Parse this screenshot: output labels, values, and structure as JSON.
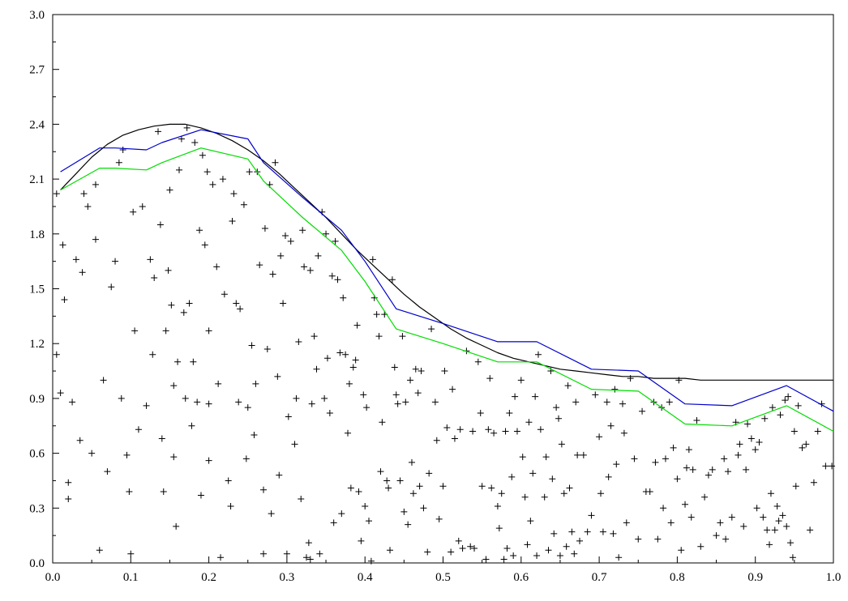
{
  "chart_data": {
    "type": "line",
    "title": "",
    "xlabel": "",
    "ylabel": "",
    "xlim": [
      0.0,
      1.0
    ],
    "ylim": [
      0.0,
      3.0
    ],
    "grid": false,
    "x_ticks": [
      "0.0",
      "0.1",
      "0.2",
      "0.3",
      "0.4",
      "0.5",
      "0.6",
      "0.7",
      "0.8",
      "0.9",
      "1.0"
    ],
    "y_ticks": [
      "0.0",
      "0.3",
      "0.6",
      "0.9",
      "1.2",
      "1.5",
      "1.8",
      "2.1",
      "2.4",
      "2.7",
      "3.0"
    ],
    "colors": {
      "smooth": "#000000",
      "blue": "#0000cc",
      "green": "#00dd00",
      "points": "#000000"
    },
    "series": [
      {
        "style": "smooth-curve",
        "x": [
          0.01,
          0.03,
          0.05,
          0.07,
          0.09,
          0.11,
          0.13,
          0.15,
          0.17,
          0.19,
          0.21,
          0.23,
          0.25,
          0.27,
          0.29,
          0.31,
          0.33,
          0.35,
          0.37,
          0.39,
          0.41,
          0.43,
          0.45,
          0.47,
          0.49,
          0.51,
          0.53,
          0.55,
          0.57,
          0.59,
          0.61,
          0.63,
          0.65,
          0.67,
          0.69,
          0.71,
          0.73,
          0.75,
          0.77,
          0.79,
          0.81,
          0.83,
          0.85,
          0.87,
          0.89,
          0.91,
          0.93,
          0.95,
          0.97,
          1.0
        ],
        "y": [
          2.04,
          2.13,
          2.22,
          2.29,
          2.34,
          2.37,
          2.39,
          2.4,
          2.4,
          2.38,
          2.35,
          2.31,
          2.26,
          2.2,
          2.13,
          2.05,
          1.97,
          1.89,
          1.8,
          1.71,
          1.63,
          1.55,
          1.47,
          1.4,
          1.34,
          1.28,
          1.23,
          1.19,
          1.15,
          1.12,
          1.1,
          1.08,
          1.06,
          1.05,
          1.04,
          1.03,
          1.02,
          1.02,
          1.01,
          1.01,
          1.01,
          1.0,
          1.0,
          1.0,
          1.0,
          1.0,
          1.0,
          1.0,
          1.0,
          1.0
        ]
      },
      {
        "style": "blue-line",
        "x": [
          0.01,
          0.06,
          0.08,
          0.12,
          0.14,
          0.19,
          0.25,
          0.27,
          0.32,
          0.37,
          0.4,
          0.44,
          0.5,
          0.57,
          0.62,
          0.69,
          0.75,
          0.81,
          0.87,
          0.94,
          1.0
        ],
        "y": [
          2.14,
          2.27,
          2.27,
          2.26,
          2.3,
          2.37,
          2.32,
          2.19,
          2.0,
          1.82,
          1.65,
          1.39,
          1.31,
          1.21,
          1.21,
          1.06,
          1.05,
          0.87,
          0.86,
          0.97,
          0.83
        ]
      },
      {
        "style": "green-line",
        "x": [
          0.01,
          0.06,
          0.08,
          0.12,
          0.14,
          0.19,
          0.25,
          0.27,
          0.32,
          0.37,
          0.4,
          0.44,
          0.5,
          0.57,
          0.62,
          0.69,
          0.75,
          0.81,
          0.87,
          0.94,
          1.0
        ],
        "y": [
          2.04,
          2.16,
          2.16,
          2.15,
          2.19,
          2.27,
          2.21,
          2.09,
          1.89,
          1.71,
          1.54,
          1.28,
          1.2,
          1.1,
          1.1,
          0.95,
          0.94,
          0.76,
          0.75,
          0.86,
          0.72
        ]
      }
    ],
    "scatter_points": [
      [
        0.005,
        2.02
      ],
      [
        0.005,
        1.14
      ],
      [
        0.01,
        0.93
      ],
      [
        0.013,
        1.74
      ],
      [
        0.015,
        1.44
      ],
      [
        0.02,
        0.44
      ],
      [
        0.02,
        0.35
      ],
      [
        0.025,
        0.88
      ],
      [
        0.03,
        1.66
      ],
      [
        0.035,
        0.67
      ],
      [
        0.038,
        1.59
      ],
      [
        0.04,
        2.02
      ],
      [
        0.045,
        1.95
      ],
      [
        0.05,
        0.6
      ],
      [
        0.055,
        1.77
      ],
      [
        0.055,
        2.07
      ],
      [
        0.06,
        0.07
      ],
      [
        0.065,
        1.0
      ],
      [
        0.07,
        0.5
      ],
      [
        0.075,
        1.51
      ],
      [
        0.08,
        1.65
      ],
      [
        0.085,
        2.19
      ],
      [
        0.088,
        0.9
      ],
      [
        0.09,
        2.26
      ],
      [
        0.095,
        0.59
      ],
      [
        0.098,
        0.39
      ],
      [
        0.1,
        0.05
      ],
      [
        0.103,
        1.92
      ],
      [
        0.105,
        1.27
      ],
      [
        0.11,
        0.73
      ],
      [
        0.115,
        1.95
      ],
      [
        0.12,
        0.86
      ],
      [
        0.125,
        1.66
      ],
      [
        0.128,
        1.14
      ],
      [
        0.13,
        1.56
      ],
      [
        0.135,
        2.36
      ],
      [
        0.138,
        1.85
      ],
      [
        0.14,
        0.68
      ],
      [
        0.142,
        0.39
      ],
      [
        0.145,
        1.27
      ],
      [
        0.148,
        1.6
      ],
      [
        0.15,
        2.04
      ],
      [
        0.152,
        1.41
      ],
      [
        0.155,
        0.97
      ],
      [
        0.155,
        0.58
      ],
      [
        0.158,
        0.2
      ],
      [
        0.16,
        1.1
      ],
      [
        0.162,
        2.15
      ],
      [
        0.165,
        2.32
      ],
      [
        0.168,
        1.37
      ],
      [
        0.17,
        0.9
      ],
      [
        0.172,
        2.38
      ],
      [
        0.175,
        1.42
      ],
      [
        0.178,
        0.75
      ],
      [
        0.18,
        1.1
      ],
      [
        0.182,
        2.3
      ],
      [
        0.185,
        0.88
      ],
      [
        0.188,
        1.82
      ],
      [
        0.19,
        0.37
      ],
      [
        0.192,
        2.23
      ],
      [
        0.195,
        1.74
      ],
      [
        0.198,
        2.14
      ],
      [
        0.2,
        1.27
      ],
      [
        0.2,
        0.87
      ],
      [
        0.2,
        0.56
      ],
      [
        0.205,
        2.07
      ],
      [
        0.21,
        1.62
      ],
      [
        0.212,
        0.98
      ],
      [
        0.215,
        0.03
      ],
      [
        0.218,
        2.1
      ],
      [
        0.22,
        1.47
      ],
      [
        0.225,
        0.45
      ],
      [
        0.228,
        0.31
      ],
      [
        0.23,
        1.87
      ],
      [
        0.232,
        2.02
      ],
      [
        0.235,
        1.42
      ],
      [
        0.238,
        0.88
      ],
      [
        0.24,
        1.39
      ],
      [
        0.245,
        1.96
      ],
      [
        0.248,
        0.57
      ],
      [
        0.25,
        0.85
      ],
      [
        0.252,
        2.14
      ],
      [
        0.255,
        1.19
      ],
      [
        0.258,
        0.7
      ],
      [
        0.26,
        0.98
      ],
      [
        0.262,
        2.14
      ],
      [
        0.265,
        1.63
      ],
      [
        0.27,
        0.4
      ],
      [
        0.27,
        0.05
      ],
      [
        0.272,
        1.83
      ],
      [
        0.275,
        1.17
      ],
      [
        0.278,
        2.07
      ],
      [
        0.28,
        0.27
      ],
      [
        0.282,
        1.58
      ],
      [
        0.285,
        2.19
      ],
      [
        0.288,
        1.02
      ],
      [
        0.29,
        0.48
      ],
      [
        0.292,
        1.68
      ],
      [
        0.295,
        1.42
      ],
      [
        0.298,
        1.79
      ],
      [
        0.3,
        0.05
      ],
      [
        0.302,
        0.8
      ],
      [
        0.305,
        1.76
      ],
      [
        0.31,
        0.65
      ],
      [
        0.312,
        0.9
      ],
      [
        0.315,
        1.21
      ],
      [
        0.318,
        0.35
      ],
      [
        0.32,
        1.82
      ],
      [
        0.322,
        1.62
      ],
      [
        0.325,
        0.03
      ],
      [
        0.328,
        0.11
      ],
      [
        0.33,
        1.6
      ],
      [
        0.33,
        0.02
      ],
      [
        0.332,
        0.87
      ],
      [
        0.335,
        1.24
      ],
      [
        0.338,
        1.06
      ],
      [
        0.34,
        1.68
      ],
      [
        0.342,
        0.05
      ],
      [
        0.345,
        1.92
      ],
      [
        0.348,
        0.9
      ],
      [
        0.35,
        1.8
      ],
      [
        0.352,
        1.12
      ],
      [
        0.355,
        0.82
      ],
      [
        0.358,
        1.57
      ],
      [
        0.36,
        0.22
      ],
      [
        0.362,
        1.76
      ],
      [
        0.365,
        1.55
      ],
      [
        0.368,
        1.15
      ],
      [
        0.37,
        0.27
      ],
      [
        0.372,
        1.45
      ],
      [
        0.375,
        1.14
      ],
      [
        0.378,
        0.71
      ],
      [
        0.38,
        0.98
      ],
      [
        0.382,
        0.41
      ],
      [
        0.385,
        1.07
      ],
      [
        0.388,
        1.11
      ],
      [
        0.39,
        1.3
      ],
      [
        0.392,
        0.39
      ],
      [
        0.395,
        0.12
      ],
      [
        0.398,
        0.92
      ],
      [
        0.4,
        0.31
      ],
      [
        0.402,
        0.85
      ],
      [
        0.405,
        0.23
      ],
      [
        0.408,
        0.01
      ],
      [
        0.41,
        1.66
      ],
      [
        0.412,
        1.45
      ],
      [
        0.415,
        1.36
      ],
      [
        0.418,
        1.24
      ],
      [
        0.42,
        0.5
      ],
      [
        0.422,
        0.77
      ],
      [
        0.425,
        1.36
      ],
      [
        0.428,
        0.45
      ],
      [
        0.43,
        0.41
      ],
      [
        0.432,
        0.07
      ],
      [
        0.435,
        1.55
      ],
      [
        0.438,
        1.07
      ],
      [
        0.44,
        0.92
      ],
      [
        0.442,
        0.87
      ],
      [
        0.445,
        0.45
      ],
      [
        0.448,
        1.24
      ],
      [
        0.45,
        0.28
      ],
      [
        0.452,
        0.88
      ],
      [
        0.455,
        0.21
      ],
      [
        0.458,
        1.0
      ],
      [
        0.46,
        0.55
      ],
      [
        0.462,
        0.38
      ],
      [
        0.465,
        1.06
      ],
      [
        0.468,
        0.93
      ],
      [
        0.47,
        0.42
      ],
      [
        0.472,
        1.05
      ],
      [
        0.475,
        0.3
      ],
      [
        0.48,
        0.06
      ],
      [
        0.482,
        0.49
      ],
      [
        0.485,
        1.28
      ],
      [
        0.49,
        0.88
      ],
      [
        0.492,
        0.67
      ],
      [
        0.495,
        0.24
      ],
      [
        0.5,
        0.42
      ],
      [
        0.502,
        1.05
      ],
      [
        0.505,
        0.74
      ],
      [
        0.51,
        0.06
      ],
      [
        0.512,
        0.95
      ],
      [
        0.515,
        0.68
      ],
      [
        0.52,
        0.12
      ],
      [
        0.522,
        0.73
      ],
      [
        0.525,
        0.08
      ],
      [
        0.53,
        1.16
      ],
      [
        0.535,
        0.09
      ],
      [
        0.538,
        0.72
      ],
      [
        0.54,
        0.08
      ],
      [
        0.545,
        1.1
      ],
      [
        0.548,
        0.82
      ],
      [
        0.55,
        0.42
      ],
      [
        0.555,
        0.02
      ],
      [
        0.558,
        0.73
      ],
      [
        0.56,
        1.01
      ],
      [
        0.562,
        0.41
      ],
      [
        0.565,
        0.71
      ],
      [
        0.57,
        0.31
      ],
      [
        0.572,
        0.19
      ],
      [
        0.575,
        0.38
      ],
      [
        0.578,
        0.02
      ],
      [
        0.58,
        0.72
      ],
      [
        0.582,
        0.08
      ],
      [
        0.585,
        0.82
      ],
      [
        0.588,
        0.47
      ],
      [
        0.59,
        0.04
      ],
      [
        0.592,
        0.91
      ],
      [
        0.595,
        0.72
      ],
      [
        0.6,
        1.0
      ],
      [
        0.602,
        0.58
      ],
      [
        0.605,
        0.36
      ],
      [
        0.608,
        0.1
      ],
      [
        0.61,
        0.77
      ],
      [
        0.612,
        0.23
      ],
      [
        0.615,
        0.49
      ],
      [
        0.618,
        0.91
      ],
      [
        0.62,
        0.04
      ],
      [
        0.622,
        1.14
      ],
      [
        0.625,
        0.73
      ],
      [
        0.63,
        0.36
      ],
      [
        0.632,
        0.58
      ],
      [
        0.635,
        0.07
      ],
      [
        0.638,
        1.05
      ],
      [
        0.64,
        0.46
      ],
      [
        0.642,
        0.16
      ],
      [
        0.645,
        0.85
      ],
      [
        0.648,
        0.79
      ],
      [
        0.65,
        0.04
      ],
      [
        0.652,
        0.65
      ],
      [
        0.655,
        0.38
      ],
      [
        0.658,
        0.09
      ],
      [
        0.66,
        0.97
      ],
      [
        0.662,
        0.41
      ],
      [
        0.665,
        0.17
      ],
      [
        0.668,
        0.05
      ],
      [
        0.67,
        0.88
      ],
      [
        0.672,
        0.59
      ],
      [
        0.675,
        0.12
      ],
      [
        0.68,
        0.59
      ],
      [
        0.685,
        0.17
      ],
      [
        0.69,
        0.26
      ],
      [
        0.695,
        0.92
      ],
      [
        0.7,
        0.69
      ],
      [
        0.702,
        0.38
      ],
      [
        0.705,
        0.17
      ],
      [
        0.71,
        0.88
      ],
      [
        0.712,
        0.47
      ],
      [
        0.715,
        0.75
      ],
      [
        0.718,
        0.16
      ],
      [
        0.72,
        0.95
      ],
      [
        0.722,
        0.54
      ],
      [
        0.725,
        0.03
      ],
      [
        0.73,
        0.87
      ],
      [
        0.732,
        0.71
      ],
      [
        0.735,
        0.22
      ],
      [
        0.74,
        1.01
      ],
      [
        0.745,
        0.57
      ],
      [
        0.75,
        0.13
      ],
      [
        0.755,
        0.83
      ],
      [
        0.76,
        0.39
      ],
      [
        0.765,
        0.39
      ],
      [
        0.77,
        0.88
      ],
      [
        0.772,
        0.55
      ],
      [
        0.775,
        0.13
      ],
      [
        0.78,
        0.85
      ],
      [
        0.782,
        0.3
      ],
      [
        0.785,
        0.57
      ],
      [
        0.79,
        0.88
      ],
      [
        0.792,
        0.22
      ],
      [
        0.795,
        0.63
      ],
      [
        0.8,
        0.46
      ],
      [
        0.802,
        1.0
      ],
      [
        0.805,
        0.07
      ],
      [
        0.81,
        0.32
      ],
      [
        0.812,
        0.52
      ],
      [
        0.815,
        0.62
      ],
      [
        0.818,
        0.25
      ],
      [
        0.82,
        0.51
      ],
      [
        0.825,
        0.78
      ],
      [
        0.83,
        0.09
      ],
      [
        0.835,
        0.36
      ],
      [
        0.84,
        0.48
      ],
      [
        0.845,
        0.51
      ],
      [
        0.85,
        0.15
      ],
      [
        0.855,
        0.22
      ],
      [
        0.86,
        0.57
      ],
      [
        0.862,
        0.13
      ],
      [
        0.865,
        0.5
      ],
      [
        0.87,
        0.25
      ],
      [
        0.875,
        0.77
      ],
      [
        0.878,
        0.59
      ],
      [
        0.88,
        0.65
      ],
      [
        0.885,
        0.2
      ],
      [
        0.888,
        0.51
      ],
      [
        0.89,
        0.76
      ],
      [
        0.895,
        0.68
      ],
      [
        0.9,
        0.62
      ],
      [
        0.902,
        0.3
      ],
      [
        0.905,
        0.66
      ],
      [
        0.91,
        0.25
      ],
      [
        0.912,
        0.79
      ],
      [
        0.915,
        0.18
      ],
      [
        0.918,
        0.1
      ],
      [
        0.92,
        0.38
      ],
      [
        0.922,
        0.85
      ],
      [
        0.925,
        0.18
      ],
      [
        0.928,
        0.31
      ],
      [
        0.93,
        0.23
      ],
      [
        0.932,
        0.81
      ],
      [
        0.935,
        0.26
      ],
      [
        0.938,
        0.89
      ],
      [
        0.94,
        0.2
      ],
      [
        0.942,
        0.91
      ],
      [
        0.945,
        0.11
      ],
      [
        0.948,
        0.03
      ],
      [
        0.95,
        0.72
      ],
      [
        0.952,
        0.42
      ],
      [
        0.955,
        0.86
      ],
      [
        0.96,
        0.63
      ],
      [
        0.965,
        0.65
      ],
      [
        0.97,
        0.18
      ],
      [
        0.975,
        0.44
      ],
      [
        0.98,
        0.72
      ],
      [
        0.985,
        0.87
      ],
      [
        0.99,
        0.53
      ],
      [
        0.998,
        0.53
      ]
    ]
  }
}
